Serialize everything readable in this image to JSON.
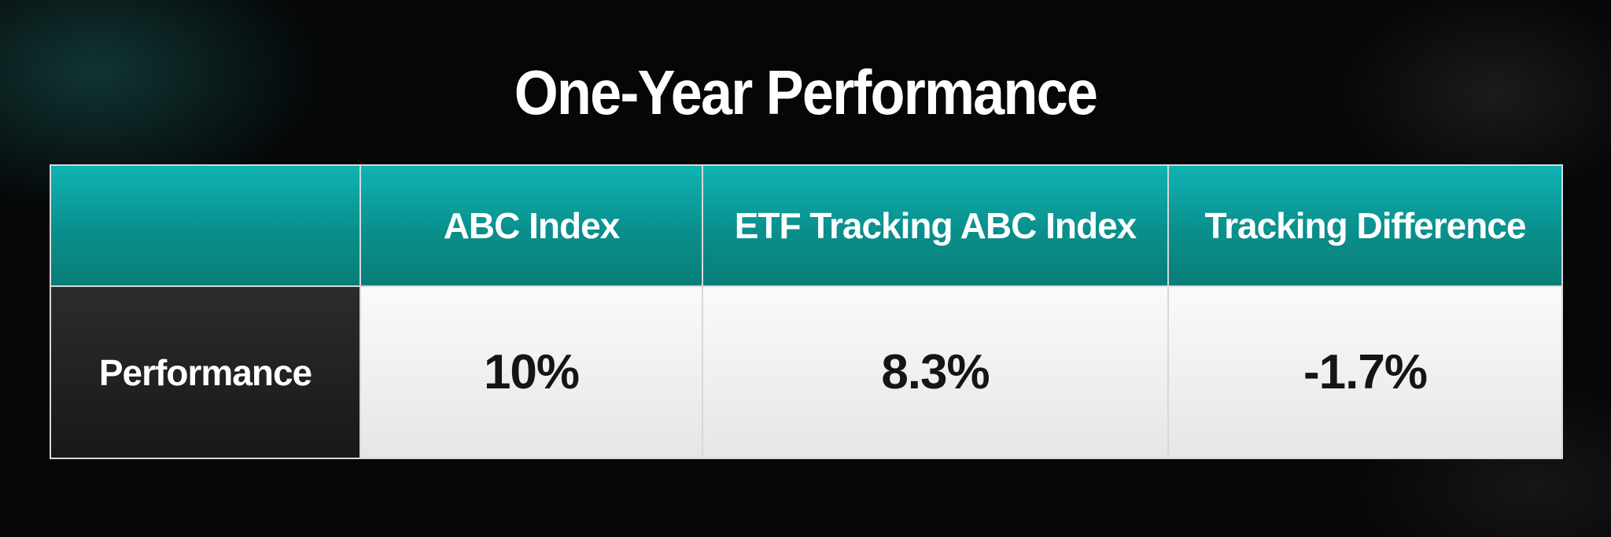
{
  "title": "One-Year Performance",
  "table": {
    "columns": [
      "ABC Index",
      "ETF Tracking ABC Index",
      "Tracking Difference"
    ],
    "rows": [
      {
        "label": "Performance",
        "cells": [
          "10%",
          "8.3%",
          "-1.7%"
        ]
      }
    ]
  }
}
